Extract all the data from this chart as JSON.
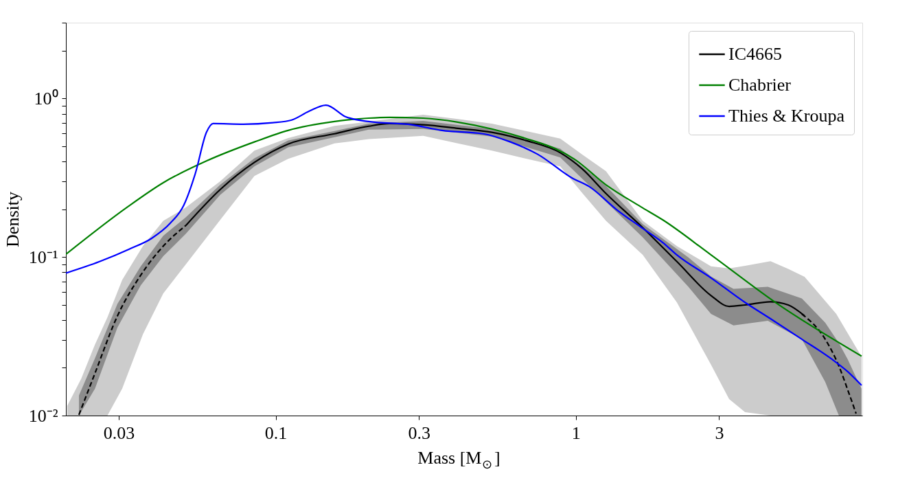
{
  "chart_data": {
    "type": "line",
    "xlabel": "Mass [M$_{⊙}$]",
    "ylabel": "Density",
    "log": "xy",
    "grid": false,
    "legend": "top right",
    "xlim": [
      0.02,
      9
    ],
    "ylim": [
      0.01,
      3
    ],
    "xticks": [
      0.03,
      0.1,
      0.3,
      1,
      3
    ],
    "yticks": [
      {
        "value": 0.01,
        "label": "10⁻²"
      },
      {
        "value": 0.02,
        "label": null
      },
      {
        "value": 0.03,
        "label": null
      },
      {
        "value": 0.04,
        "label": null
      },
      {
        "value": 0.05,
        "label": null
      },
      {
        "value": 0.06,
        "label": null
      },
      {
        "value": 0.07,
        "label": null
      },
      {
        "value": 0.08,
        "label": null
      },
      {
        "value": 0.09,
        "label": null
      },
      {
        "value": 0.1,
        "label": "10⁻¹"
      },
      {
        "value": 0.2,
        "label": null
      },
      {
        "value": 0.3,
        "label": null
      },
      {
        "value": 0.4,
        "label": null
      },
      {
        "value": 0.5,
        "label": null
      },
      {
        "value": 0.6,
        "label": null
      },
      {
        "value": 0.7,
        "label": null
      },
      {
        "value": 0.8,
        "label": null
      },
      {
        "value": 0.9,
        "label": null
      },
      {
        "value": 1,
        "label": "10⁰"
      },
      {
        "value": 2,
        "label": null
      },
      {
        "value": 3,
        "label": null
      }
    ],
    "series": [
      {
        "name": "IC4665",
        "color": "#000000",
        "line_style": "solid",
        "x": [
          0.0202,
          0.0225,
          0.025,
          0.0275,
          0.0308,
          0.0361,
          0.0422,
          0.0502,
          0.0653,
          0.0849,
          0.11,
          0.157,
          0.204,
          0.239,
          0.31,
          0.404,
          0.525,
          0.682,
          0.887,
          1.05,
          1.26,
          1.67,
          2.17,
          2.82,
          3.24,
          3.66,
          4.45,
          5.1,
          5.78,
          7.37,
          8.95
        ],
        "values": [
          null,
          null,
          null,
          null,
          null,
          null,
          null,
          0.158,
          0.266,
          0.395,
          0.515,
          0.598,
          0.667,
          0.693,
          0.681,
          0.647,
          0.611,
          0.542,
          0.454,
          0.359,
          0.251,
          0.153,
          0.0935,
          0.0571,
          0.0488,
          0.0498,
          0.0522,
          0.0498,
          0.0425,
          null,
          null
        ],
        "upper": [
          0.0115,
          0.0171,
          0.0281,
          0.0416,
          0.0716,
          0.117,
          0.169,
          0.205,
          0.3,
          0.468,
          0.562,
          0.67,
          0.714,
          0.74,
          0.789,
          0.74,
          0.693,
          0.622,
          0.558,
          0.442,
          0.347,
          0.169,
          0.117,
          0.0873,
          0.0847,
          0.088,
          0.094,
          0.084,
          0.075,
          0.0437,
          0.0235
        ],
        "lower": [
          0.01,
          0.01,
          0.01,
          0.01,
          0.0148,
          0.0325,
          0.0588,
          0.09,
          0.171,
          0.324,
          0.416,
          0.52,
          0.553,
          0.563,
          0.58,
          0.52,
          0.468,
          0.417,
          0.372,
          0.253,
          0.169,
          0.103,
          0.0517,
          0.0209,
          0.0127,
          0.0105,
          0.01,
          0.01,
          0.01,
          0.01,
          0.01
        ]
      },
      {
        "color": "#000000",
        "line_style": "dashed",
        "x": [
          0.0221,
          0.025,
          0.0297,
          0.0355,
          0.0422,
          0.0502,
          0.0653,
          0.0849,
          0.11,
          0.157,
          0.204,
          0.31,
          0.525,
          0.887,
          1.26,
          1.67,
          2.37,
          2.82,
          3.35,
          4.36,
          5.66,
          6.77,
          7.52,
          8.05,
          8.58,
          8.95
        ],
        "values": [
          0.0101,
          0.0185,
          0.0425,
          0.0767,
          0.117,
          0.158,
          null,
          null,
          null,
          null,
          null,
          null,
          null,
          null,
          null,
          null,
          null,
          null,
          null,
          null,
          0.0437,
          0.0303,
          0.0205,
          0.0145,
          0.0103,
          null
        ],
        "upper": [
          0.0134,
          0.023,
          0.0507,
          0.0873,
          0.136,
          0.178,
          0.285,
          0.419,
          0.542,
          0.622,
          0.693,
          0.721,
          0.641,
          0.481,
          0.28,
          0.161,
          0.0993,
          0.0753,
          0.063,
          0.0649,
          0.0548,
          0.0385,
          0.0286,
          0.0226,
          0.0174,
          0.0148
        ],
        "lower": [
          0.01,
          0.0148,
          0.0359,
          0.0662,
          0.101,
          0.14,
          0.246,
          0.372,
          0.491,
          0.569,
          0.634,
          0.641,
          0.575,
          0.424,
          0.223,
          0.133,
          0.0649,
          0.0437,
          0.037,
          0.0396,
          0.0303,
          0.0163,
          0.01,
          0.01,
          0.01,
          0.01
        ]
      },
      {
        "name": "Chabrier",
        "color": "#008000",
        "line_style": "solid",
        "x": [
          0.02,
          0.032,
          0.0422,
          0.0588,
          0.0849,
          0.11,
          0.157,
          0.204,
          0.239,
          0.31,
          0.404,
          0.525,
          0.682,
          0.855,
          0.986,
          1.26,
          1.64,
          1.95,
          2.82,
          4.76,
          8.95
        ],
        "values": [
          0.104,
          0.206,
          0.294,
          0.403,
          0.531,
          0.628,
          0.714,
          0.75,
          0.759,
          0.75,
          0.708,
          0.641,
          0.558,
          0.481,
          0.415,
          0.285,
          0.208,
          0.171,
          0.103,
          0.0497,
          0.0237
        ]
      },
      {
        "name": "Thies & Kroupa",
        "color": "#0000ff",
        "line_style": "solid",
        "x": [
          0.02,
          0.0259,
          0.0325,
          0.0386,
          0.0445,
          0.0494,
          0.054,
          0.0588,
          0.0619,
          0.078,
          0.0978,
          0.113,
          0.129,
          0.147,
          0.171,
          0.204,
          0.284,
          0.358,
          0.491,
          0.605,
          0.746,
          0.97,
          1.11,
          1.37,
          1.64,
          1.95,
          2.17,
          2.82,
          3.66,
          4.45,
          5.66,
          7.14,
          8.05,
          8.95
        ],
        "values": [
          0.0791,
          0.0935,
          0.112,
          0.131,
          0.163,
          0.212,
          0.337,
          0.611,
          0.693,
          0.687,
          0.702,
          0.73,
          0.828,
          0.906,
          0.766,
          0.714,
          0.681,
          0.628,
          0.598,
          0.531,
          0.444,
          0.315,
          0.277,
          0.198,
          0.155,
          0.123,
          0.103,
          0.0738,
          0.0517,
          0.0408,
          0.0303,
          0.0226,
          0.0189,
          0.0155
        ]
      }
    ]
  }
}
